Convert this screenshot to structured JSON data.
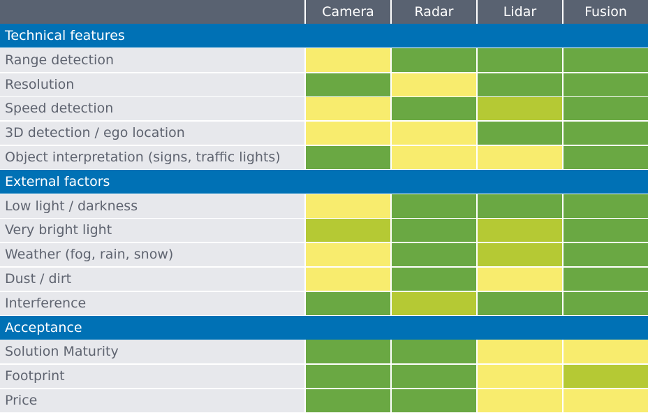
{
  "colors": {
    "header_bg": "#596271",
    "section_bg": "#0071b5",
    "label_bg": "#e7e8ec",
    "label_text": "#5f6470",
    "green": "#6aa843",
    "yellow": "#f8ec6e",
    "lightgreen": "#b5c934"
  },
  "chart_data": {
    "type": "table",
    "columns": [
      "Camera",
      "Radar",
      "Lidar",
      "Fusion"
    ],
    "rating_colors": {
      "green": "#6aa843",
      "yellow": "#f8ec6e",
      "lightgreen": "#b5c934"
    },
    "sections": [
      {
        "title": "Technical features",
        "rows": [
          {
            "label": "Range detection",
            "ratings": [
              "yellow",
              "green",
              "green",
              "green"
            ]
          },
          {
            "label": "Resolution",
            "ratings": [
              "green",
              "yellow",
              "green",
              "green"
            ]
          },
          {
            "label": "Speed detection",
            "ratings": [
              "yellow",
              "green",
              "lightgreen",
              "green"
            ]
          },
          {
            "label": "3D detection / ego location",
            "ratings": [
              "yellow",
              "yellow",
              "green",
              "green"
            ]
          },
          {
            "label": "Object interpretation (signs, traffic lights)",
            "ratings": [
              "green",
              "yellow",
              "yellow",
              "green"
            ]
          }
        ]
      },
      {
        "title": "External factors",
        "rows": [
          {
            "label": "Low light / darkness",
            "ratings": [
              "yellow",
              "green",
              "green",
              "green"
            ]
          },
          {
            "label": "Very bright light",
            "ratings": [
              "lightgreen",
              "green",
              "lightgreen",
              "green"
            ]
          },
          {
            "label": "Weather (fog, rain, snow)",
            "ratings": [
              "yellow",
              "green",
              "lightgreen",
              "green"
            ]
          },
          {
            "label": "Dust / dirt",
            "ratings": [
              "yellow",
              "green",
              "yellow",
              "green"
            ]
          },
          {
            "label": "Interference",
            "ratings": [
              "green",
              "lightgreen",
              "green",
              "green"
            ]
          }
        ]
      },
      {
        "title": "Acceptance",
        "rows": [
          {
            "label": "Solution Maturity",
            "ratings": [
              "green",
              "green",
              "yellow",
              "yellow"
            ]
          },
          {
            "label": "Footprint",
            "ratings": [
              "green",
              "green",
              "yellow",
              "lightgreen"
            ]
          },
          {
            "label": "Price",
            "ratings": [
              "green",
              "green",
              "yellow",
              "yellow"
            ]
          }
        ]
      }
    ]
  }
}
